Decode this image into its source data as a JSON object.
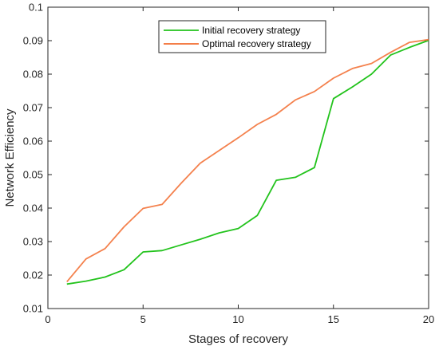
{
  "chart_data": {
    "type": "line",
    "title": "",
    "xlabel": "Stages of recovery",
    "ylabel": "Network Efficiency",
    "xlim": [
      0,
      20
    ],
    "ylim": [
      0.01,
      0.1
    ],
    "xticks": [
      0,
      5,
      10,
      15,
      20
    ],
    "xtick_labels": [
      "0",
      "5",
      "10",
      "15",
      "20"
    ],
    "yticks": [
      0.01,
      0.02,
      0.03,
      0.04,
      0.05,
      0.06,
      0.07,
      0.08,
      0.09,
      0.1
    ],
    "ytick_labels": [
      "0.01",
      "0.02",
      "0.03",
      "0.04",
      "0.05",
      "0.06",
      "0.07",
      "0.08",
      "0.09",
      "0.1"
    ],
    "grid": false,
    "legend_position": "top-center",
    "x": [
      1,
      2,
      3,
      4,
      5,
      6,
      7,
      8,
      9,
      10,
      11,
      12,
      13,
      14,
      15,
      16,
      17,
      18,
      19,
      20
    ],
    "series": [
      {
        "name": "Initial recovery strategy",
        "color": "#22c31c",
        "values": [
          0.0173,
          0.0182,
          0.0194,
          0.0216,
          0.0269,
          0.0273,
          0.029,
          0.0307,
          0.0326,
          0.0339,
          0.0378,
          0.0483,
          0.0492,
          0.0521,
          0.0727,
          0.0762,
          0.08,
          0.0857,
          0.088,
          0.0901
        ]
      },
      {
        "name": "Optimal recovery strategy",
        "color": "#f26b2e",
        "values": [
          0.018,
          0.0248,
          0.0279,
          0.0344,
          0.0399,
          0.0411,
          0.0474,
          0.0534,
          0.0572,
          0.061,
          0.065,
          0.068,
          0.0723,
          0.0748,
          0.0788,
          0.0817,
          0.0832,
          0.0865,
          0.0895,
          0.0903
        ]
      }
    ]
  }
}
